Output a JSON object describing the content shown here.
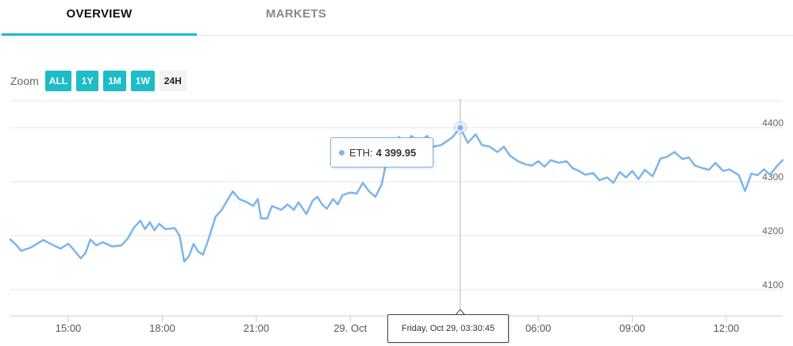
{
  "tabs": [
    {
      "label": "OVERVIEW",
      "active": true
    },
    {
      "label": "MARKETS",
      "active": false
    }
  ],
  "zoom": {
    "label": "Zoom",
    "buttons": [
      {
        "label": "ALL",
        "active": true
      },
      {
        "label": "1Y",
        "active": true
      },
      {
        "label": "1M",
        "active": true
      },
      {
        "label": "1W",
        "active": true
      },
      {
        "label": "24H",
        "active": false
      }
    ]
  },
  "colors": {
    "accent": "#1dbcc7",
    "series": "#7cb5ec",
    "grid": "#e6e6e6"
  },
  "tooltip": {
    "series": "ETH:",
    "value": "4 399.95",
    "date": "Friday, Oct 29, 03:30:45"
  },
  "chart_data": {
    "type": "line",
    "series": [
      {
        "name": "ETH"
      }
    ],
    "yticks": [
      4100,
      4200,
      4300,
      4400
    ],
    "ylim": [
      4080,
      4500
    ],
    "xticks": [
      {
        "label": "15:00",
        "hour": 15
      },
      {
        "label": "18:00",
        "hour": 18
      },
      {
        "label": "21:00",
        "hour": 21
      },
      {
        "label": "29. Oct",
        "hour": 24
      },
      {
        "label": "06:00",
        "hour": 30
      },
      {
        "label": "09:00",
        "hour": 33
      },
      {
        "label": "12:00",
        "hour": 36
      }
    ],
    "xlim": [
      13.15,
      37.8
    ],
    "hover": {
      "hour": 27.51,
      "value": 4399.95
    },
    "points": [
      [
        13.15,
        4193
      ],
      [
        13.3,
        4185
      ],
      [
        13.5,
        4172
      ],
      [
        13.8,
        4178
      ],
      [
        14.0,
        4185
      ],
      [
        14.2,
        4192
      ],
      [
        14.5,
        4183
      ],
      [
        14.75,
        4176
      ],
      [
        15.0,
        4185
      ],
      [
        15.2,
        4172
      ],
      [
        15.4,
        4158
      ],
      [
        15.55,
        4168
      ],
      [
        15.7,
        4193
      ],
      [
        15.9,
        4182
      ],
      [
        16.1,
        4188
      ],
      [
        16.4,
        4180
      ],
      [
        16.7,
        4182
      ],
      [
        16.9,
        4195
      ],
      [
        17.1,
        4215
      ],
      [
        17.3,
        4228
      ],
      [
        17.45,
        4212
      ],
      [
        17.6,
        4225
      ],
      [
        17.75,
        4210
      ],
      [
        17.9,
        4222
      ],
      [
        18.1,
        4212
      ],
      [
        18.4,
        4214
      ],
      [
        18.55,
        4200
      ],
      [
        18.7,
        4152
      ],
      [
        18.85,
        4162
      ],
      [
        19.0,
        4185
      ],
      [
        19.15,
        4170
      ],
      [
        19.3,
        4165
      ],
      [
        19.5,
        4198
      ],
      [
        19.7,
        4235
      ],
      [
        19.9,
        4248
      ],
      [
        20.1,
        4268
      ],
      [
        20.25,
        4282
      ],
      [
        20.45,
        4268
      ],
      [
        20.7,
        4262
      ],
      [
        20.9,
        4255
      ],
      [
        21.05,
        4268
      ],
      [
        21.15,
        4232
      ],
      [
        21.35,
        4232
      ],
      [
        21.5,
        4255
      ],
      [
        21.8,
        4248
      ],
      [
        22.0,
        4258
      ],
      [
        22.2,
        4248
      ],
      [
        22.35,
        4262
      ],
      [
        22.6,
        4240
      ],
      [
        22.8,
        4265
      ],
      [
        22.95,
        4272
      ],
      [
        23.1,
        4258
      ],
      [
        23.25,
        4250
      ],
      [
        23.45,
        4268
      ],
      [
        23.6,
        4258
      ],
      [
        23.75,
        4275
      ],
      [
        24.0,
        4280
      ],
      [
        24.2,
        4278
      ],
      [
        24.4,
        4298
      ],
      [
        24.6,
        4282
      ],
      [
        24.8,
        4272
      ],
      [
        25.0,
        4295
      ],
      [
        25.2,
        4350
      ],
      [
        25.4,
        4365
      ],
      [
        25.55,
        4383
      ],
      [
        25.8,
        4370
      ],
      [
        25.95,
        4385
      ],
      [
        26.2,
        4372
      ],
      [
        26.45,
        4385
      ],
      [
        26.65,
        4365
      ],
      [
        26.9,
        4368
      ],
      [
        27.05,
        4374
      ],
      [
        27.25,
        4382
      ],
      [
        27.51,
        4399.95
      ],
      [
        27.75,
        4372
      ],
      [
        28.0,
        4388
      ],
      [
        28.2,
        4368
      ],
      [
        28.45,
        4365
      ],
      [
        28.7,
        4355
      ],
      [
        28.9,
        4365
      ],
      [
        29.1,
        4348
      ],
      [
        29.35,
        4338
      ],
      [
        29.6,
        4332
      ],
      [
        29.8,
        4330
      ],
      [
        30.0,
        4338
      ],
      [
        30.2,
        4328
      ],
      [
        30.4,
        4340
      ],
      [
        30.65,
        4335
      ],
      [
        30.9,
        4338
      ],
      [
        31.1,
        4325
      ],
      [
        31.3,
        4320
      ],
      [
        31.5,
        4313
      ],
      [
        31.75,
        4316
      ],
      [
        31.95,
        4303
      ],
      [
        32.2,
        4308
      ],
      [
        32.4,
        4298
      ],
      [
        32.6,
        4318
      ],
      [
        32.8,
        4308
      ],
      [
        33.0,
        4320
      ],
      [
        33.2,
        4305
      ],
      [
        33.4,
        4322
      ],
      [
        33.65,
        4310
      ],
      [
        33.9,
        4343
      ],
      [
        34.1,
        4346
      ],
      [
        34.35,
        4355
      ],
      [
        34.6,
        4342
      ],
      [
        34.8,
        4345
      ],
      [
        35.0,
        4330
      ],
      [
        35.25,
        4325
      ],
      [
        35.45,
        4322
      ],
      [
        35.65,
        4335
      ],
      [
        35.9,
        4320
      ],
      [
        36.1,
        4323
      ],
      [
        36.4,
        4312
      ],
      [
        36.6,
        4283
      ],
      [
        36.8,
        4315
      ],
      [
        37.0,
        4312
      ],
      [
        37.2,
        4323
      ],
      [
        37.4,
        4313
      ],
      [
        37.6,
        4328
      ],
      [
        37.8,
        4340
      ]
    ]
  }
}
